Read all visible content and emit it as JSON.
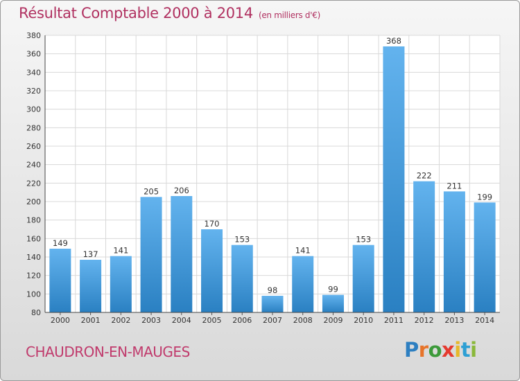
{
  "header": {
    "title": "Résultat Comptable 2000 à 2014",
    "unit": "(en milliers d'€)"
  },
  "footer": {
    "commune": "CHAUDRON-EN-MAUGES",
    "logo_text": "Proxiti"
  },
  "colors": {
    "bar_light": "#63b3ee",
    "bar_dark": "#2a80c2",
    "title": "#b03060",
    "grid": "#d8d8d8"
  },
  "chart_data": {
    "type": "bar",
    "title": "Résultat Comptable 2000 à 2014",
    "xlabel": "",
    "ylabel": "",
    "categories": [
      "2000",
      "2001",
      "2002",
      "2003",
      "2004",
      "2005",
      "2006",
      "2007",
      "2008",
      "2009",
      "2010",
      "2011",
      "2012",
      "2013",
      "2014"
    ],
    "values": [
      149,
      137,
      141,
      205,
      206,
      170,
      153,
      98,
      141,
      99,
      153,
      368,
      222,
      211,
      199
    ],
    "ylim": [
      80,
      380
    ],
    "yticks": [
      80,
      100,
      120,
      140,
      160,
      180,
      200,
      220,
      240,
      260,
      280,
      300,
      320,
      340,
      360,
      380
    ],
    "grid": true,
    "data_labels": true
  }
}
